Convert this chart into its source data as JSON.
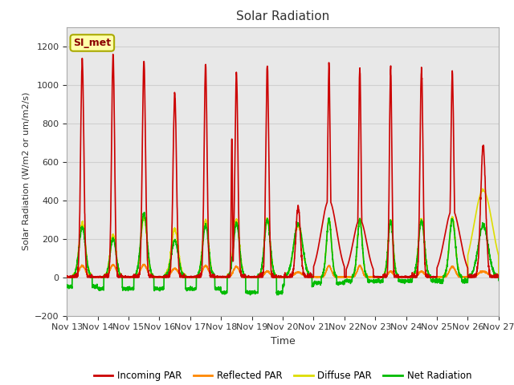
{
  "title": "Solar Radiation",
  "ylabel": "Solar Radiation (W/m2 or um/m2/s)",
  "xlabel": "Time",
  "ylim": [
    -200,
    1300
  ],
  "yticks": [
    -200,
    0,
    200,
    400,
    600,
    800,
    1000,
    1200
  ],
  "x_labels": [
    "Nov 13",
    "Nov 14",
    "Nov 15",
    "Nov 16",
    "Nov 17",
    "Nov 18",
    "Nov 19",
    "Nov 20",
    "Nov 21",
    "Nov 22",
    "Nov 23",
    "Nov 24",
    "Nov 25",
    "Nov 26",
    "Nov 27"
  ],
  "annotation": "SI_met",
  "annotation_color": "#8B0000",
  "annotation_bg": "#FFFFAA",
  "annotation_edge": "#AAAA00",
  "grid_color": "#d0d0d0",
  "bg_color": "#e8e8e8",
  "plot_bg": "#f0f0f0",
  "colors": {
    "incoming": "#CC0000",
    "reflected": "#FF8800",
    "diffuse": "#DDDD00",
    "net": "#00BB00"
  },
  "legend_labels": [
    "Incoming PAR",
    "Reflected PAR",
    "Diffuse PAR",
    "Net Radiation"
  ]
}
